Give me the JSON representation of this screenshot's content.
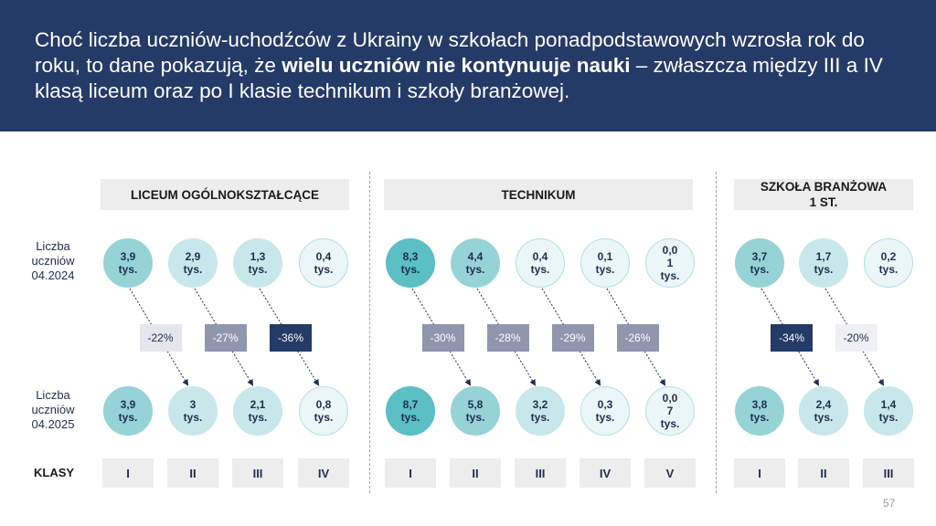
{
  "header": {
    "text_before": "Choć liczba uczniów-uchodźców z Ukrainy w szkołach ponadpodstawowych wzrosła rok do roku, to dane pokazują, że ",
    "text_bold": "wielu uczniów nie kontynuuje nauki",
    "text_after": " – zwłaszcza między III a IV klasą liceum oraz po I klasie technikum i szkoły branżowej."
  },
  "row_labels": {
    "y2024": "Liczba uczniów 04.2024",
    "y2025": "Liczba uczniów 04.2025",
    "classes": "KLASY"
  },
  "sections": [
    {
      "name": "LICEUM  OGÓLNOKSZTAŁCĄCE",
      "classes": [
        "I",
        "II",
        "III",
        "IV"
      ],
      "y2024": [
        [
          "3,9",
          "tys."
        ],
        [
          "2,9",
          "tys."
        ],
        [
          "1,3",
          "tys."
        ],
        [
          "0,4",
          "tys."
        ]
      ],
      "y2025": [
        [
          "3,9",
          "tys."
        ],
        [
          "3",
          "tys."
        ],
        [
          "2,1",
          "tys."
        ],
        [
          "0,8",
          "tys."
        ]
      ],
      "changes": [
        "-22%",
        "-27%",
        "-36%"
      ]
    },
    {
      "name": "TECHNIKUM",
      "classes": [
        "I",
        "II",
        "III",
        "IV",
        "V"
      ],
      "y2024": [
        [
          "8,3",
          "tys."
        ],
        [
          "4,4",
          "tys."
        ],
        [
          "0,4",
          "tys."
        ],
        [
          "0,1",
          "tys."
        ],
        [
          "0,0",
          "1",
          "tys."
        ]
      ],
      "y2025": [
        [
          "8,7",
          "tys."
        ],
        [
          "5,8",
          "tys."
        ],
        [
          "3,2",
          "tys."
        ],
        [
          "0,3",
          "tys."
        ],
        [
          "0,0",
          "7",
          "tys."
        ]
      ],
      "changes": [
        "-30%",
        "-28%",
        "-29%",
        "-26%"
      ]
    },
    {
      "name": "SZKOŁA BRANŻOWA 1 ST.",
      "classes": [
        "I",
        "II",
        "III"
      ],
      "y2024": [
        [
          "3,7",
          "tys."
        ],
        [
          "1,7",
          "tys."
        ],
        [
          "0,2",
          "tys."
        ]
      ],
      "y2025": [
        [
          "3,8",
          "tys."
        ],
        [
          "2,4",
          "tys."
        ],
        [
          "1,4",
          "tys."
        ]
      ],
      "changes": [
        "-34%",
        "-20%"
      ]
    }
  ],
  "page_number": "57"
}
